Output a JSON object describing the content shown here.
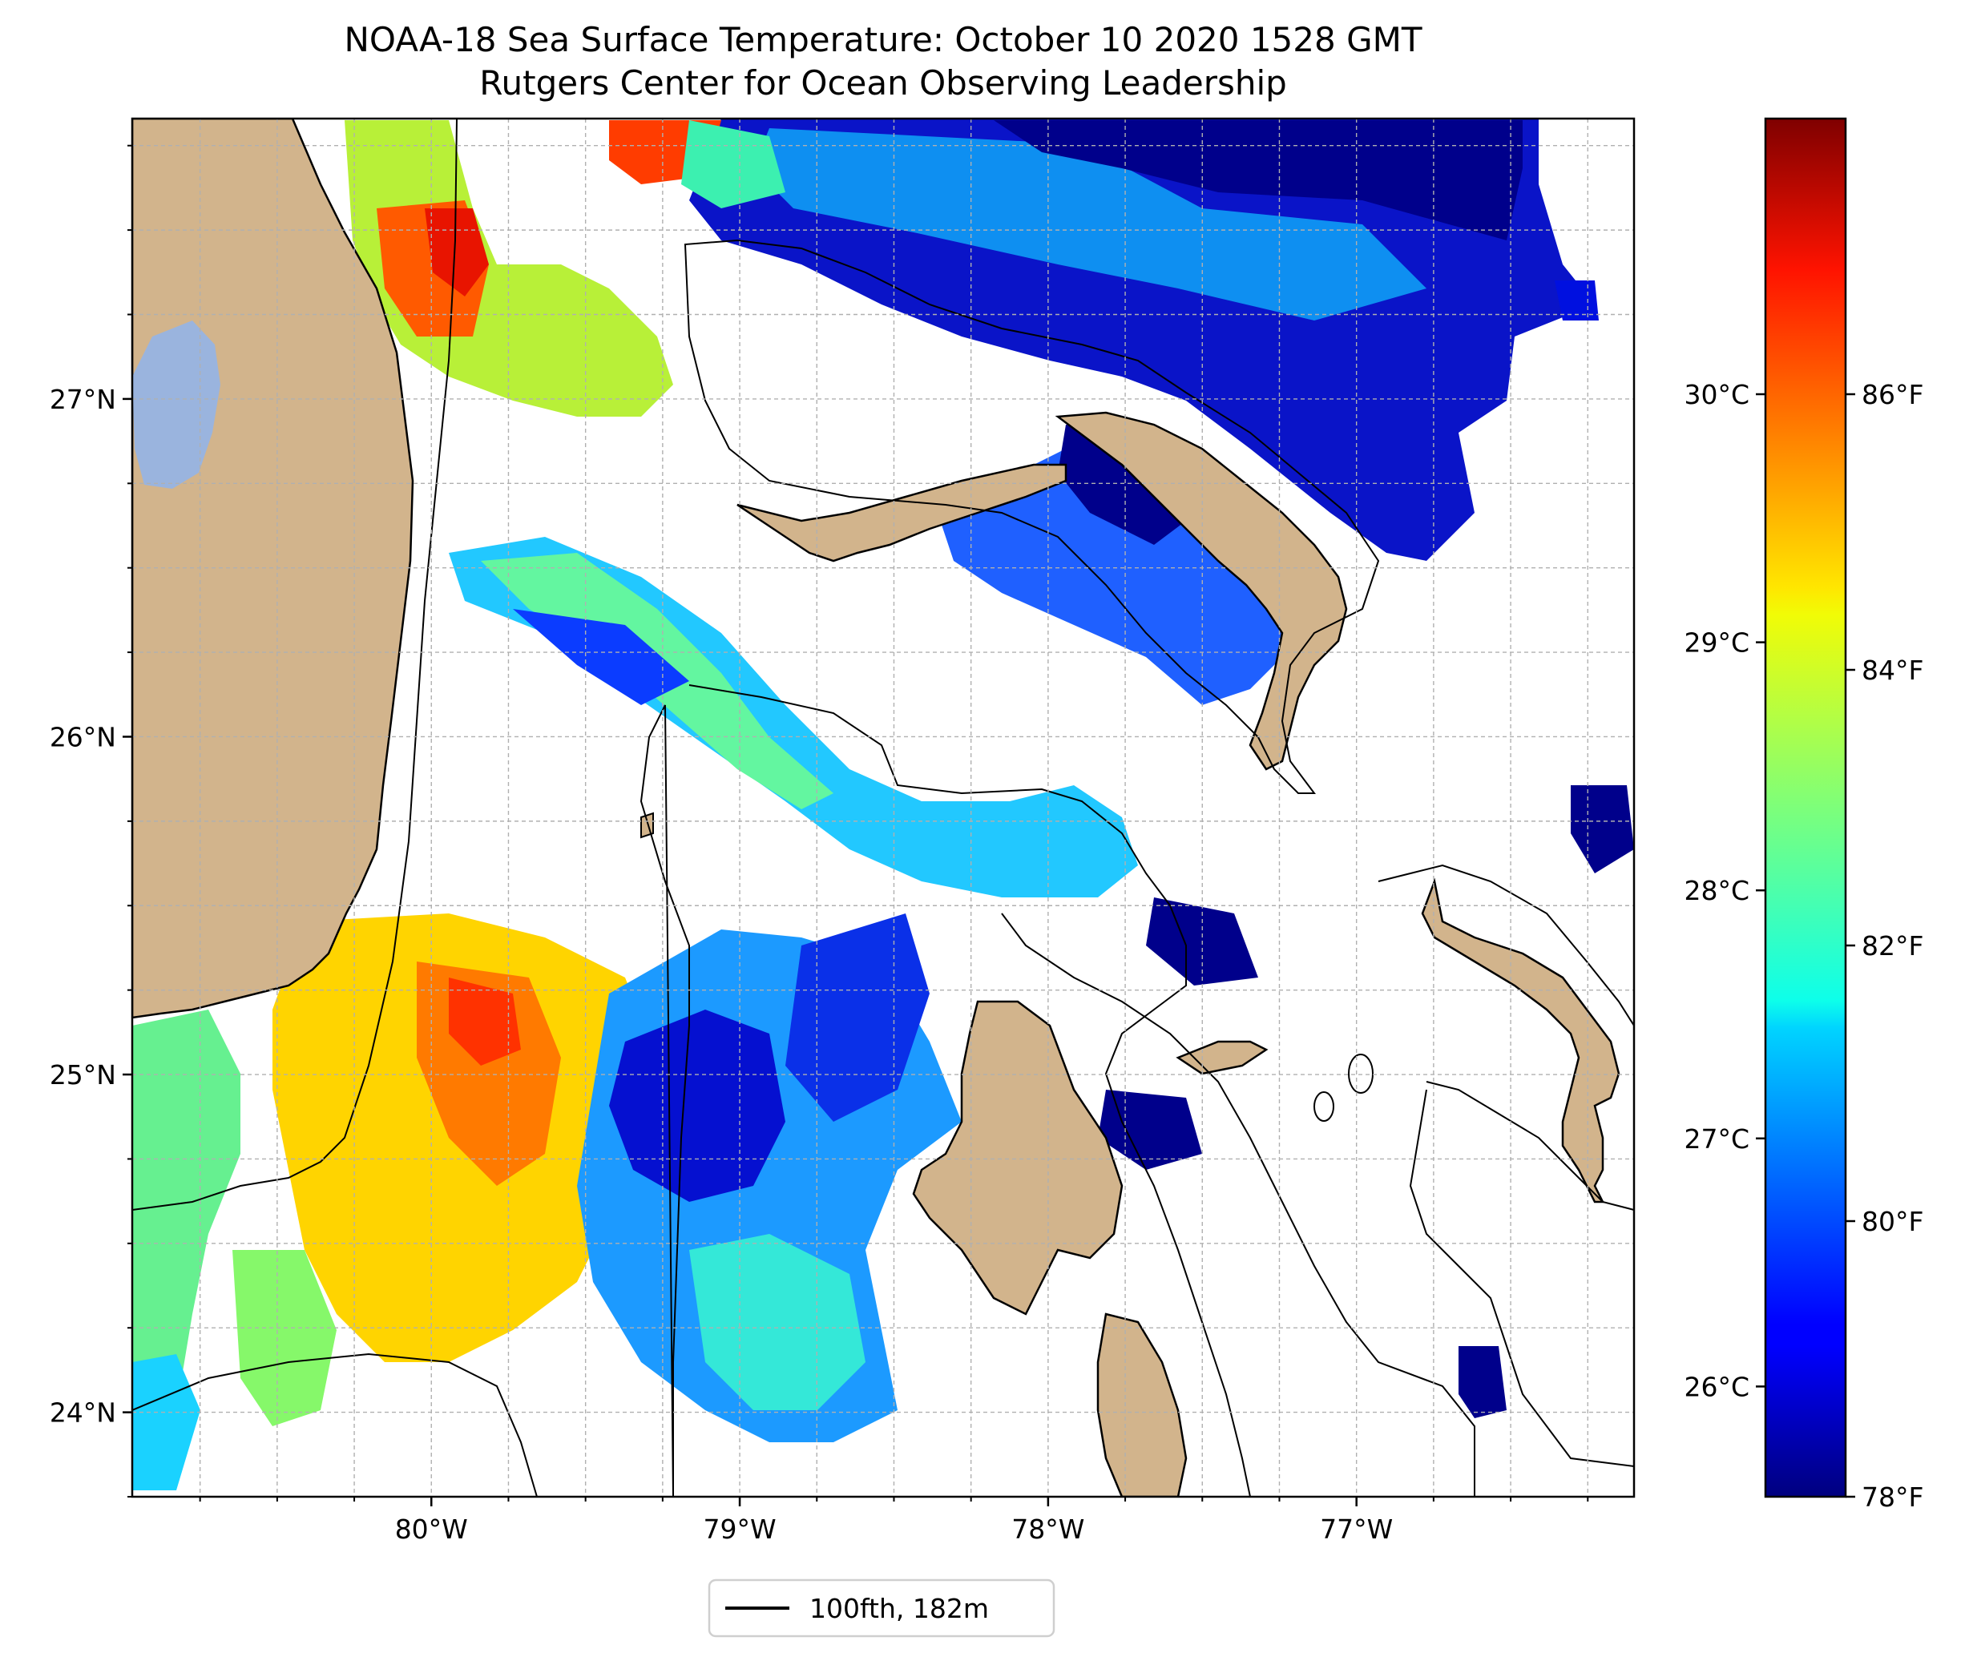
{
  "title": {
    "line1": "NOAA-18 Sea Surface Temperature: October 10 2020 1528 GMT",
    "line2": "Rutgers Center for Ocean Observing Leadership"
  },
  "map": {
    "lon_range": [
      -80.97,
      -76.1
    ],
    "lat_range": [
      23.75,
      27.83
    ],
    "x_ticks": [
      {
        "value": -80,
        "label": "80°W"
      },
      {
        "value": -79,
        "label": "79°W"
      },
      {
        "value": -78,
        "label": "78°W"
      },
      {
        "value": -77,
        "label": "77°W"
      }
    ],
    "y_ticks": [
      {
        "value": 27,
        "label": "27°N"
      },
      {
        "value": 26,
        "label": "26°N"
      },
      {
        "value": 25,
        "label": "25°N"
      },
      {
        "value": 24,
        "label": "24°N"
      }
    ],
    "grid": true,
    "colors": {
      "land": "#d2b48c",
      "lake": "#9ab4de",
      "cold": "#00008b",
      "hot": "#8b0000"
    }
  },
  "colorbar": {
    "celsius_ticks": [
      {
        "value": 30,
        "label": "30°C"
      },
      {
        "value": 29,
        "label": "29°C"
      },
      {
        "value": 28,
        "label": "28°C"
      },
      {
        "value": 27,
        "label": "27°C"
      },
      {
        "value": 26,
        "label": "26°C"
      }
    ],
    "fahrenheit_ticks": [
      {
        "value": 86,
        "label": "86°F"
      },
      {
        "value": 84,
        "label": "84°F"
      },
      {
        "value": 82,
        "label": "82°F"
      },
      {
        "value": 80,
        "label": "80°F"
      },
      {
        "value": 78,
        "label": "78°F"
      }
    ],
    "range_f": [
      78,
      88
    ]
  },
  "legend": {
    "label": "100fth, 182m"
  }
}
